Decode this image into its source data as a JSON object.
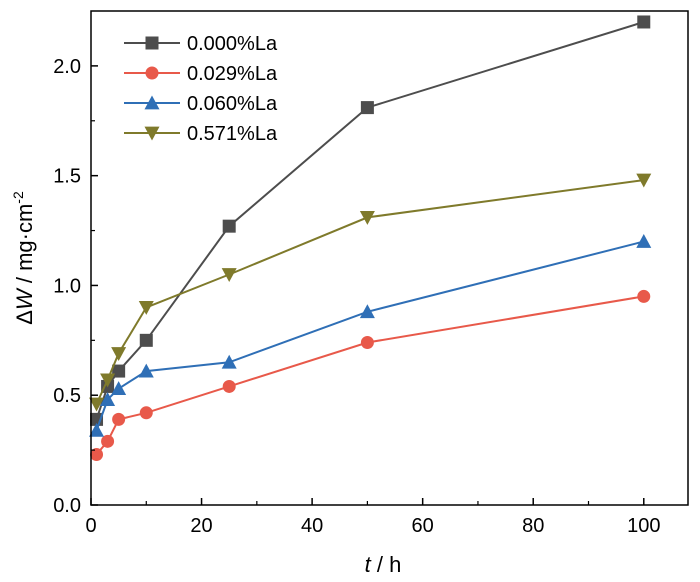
{
  "chart_data": {
    "type": "line",
    "xlabel": {
      "var": "t",
      "sep": " / ",
      "unit": "h"
    },
    "ylabel": {
      "prefix": "Δ",
      "var": "W",
      "sep": " / ",
      "unit": "mg·cm",
      "sup": "-2"
    },
    "xlim": [
      0,
      108
    ],
    "ylim": [
      0,
      2.25
    ],
    "xticks": [
      0,
      20,
      40,
      60,
      80,
      100
    ],
    "yticks": [
      0.0,
      0.5,
      1.0,
      1.5,
      2.0
    ],
    "xtick_labels": [
      "0",
      "20",
      "40",
      "60",
      "80",
      "100"
    ],
    "ytick_labels": [
      "0.0",
      "0.5",
      "1.0",
      "1.5",
      "2.0"
    ],
    "grid": false,
    "legend_position": "top-left",
    "series": [
      {
        "name": "0.000%La",
        "color": "#4d4d4d",
        "marker": "square",
        "x": [
          1,
          3,
          5,
          10,
          25,
          50,
          100
        ],
        "y": [
          0.39,
          0.54,
          0.61,
          0.75,
          1.27,
          1.81,
          2.2
        ]
      },
      {
        "name": "0.029%La",
        "color": "#e8594a",
        "marker": "circle",
        "x": [
          1,
          3,
          5,
          10,
          25,
          50,
          100
        ],
        "y": [
          0.23,
          0.29,
          0.39,
          0.42,
          0.54,
          0.74,
          0.95
        ]
      },
      {
        "name": "0.060%La",
        "color": "#2f6fb6",
        "marker": "triangle-up",
        "x": [
          1,
          3,
          5,
          10,
          25,
          50,
          100
        ],
        "y": [
          0.34,
          0.48,
          0.53,
          0.61,
          0.65,
          0.88,
          1.2
        ]
      },
      {
        "name": "0.571%La",
        "color": "#7f7a2b",
        "marker": "triangle-down",
        "x": [
          1,
          3,
          5,
          10,
          25,
          50,
          100
        ],
        "y": [
          0.46,
          0.57,
          0.69,
          0.9,
          1.05,
          1.31,
          1.48
        ]
      }
    ]
  }
}
